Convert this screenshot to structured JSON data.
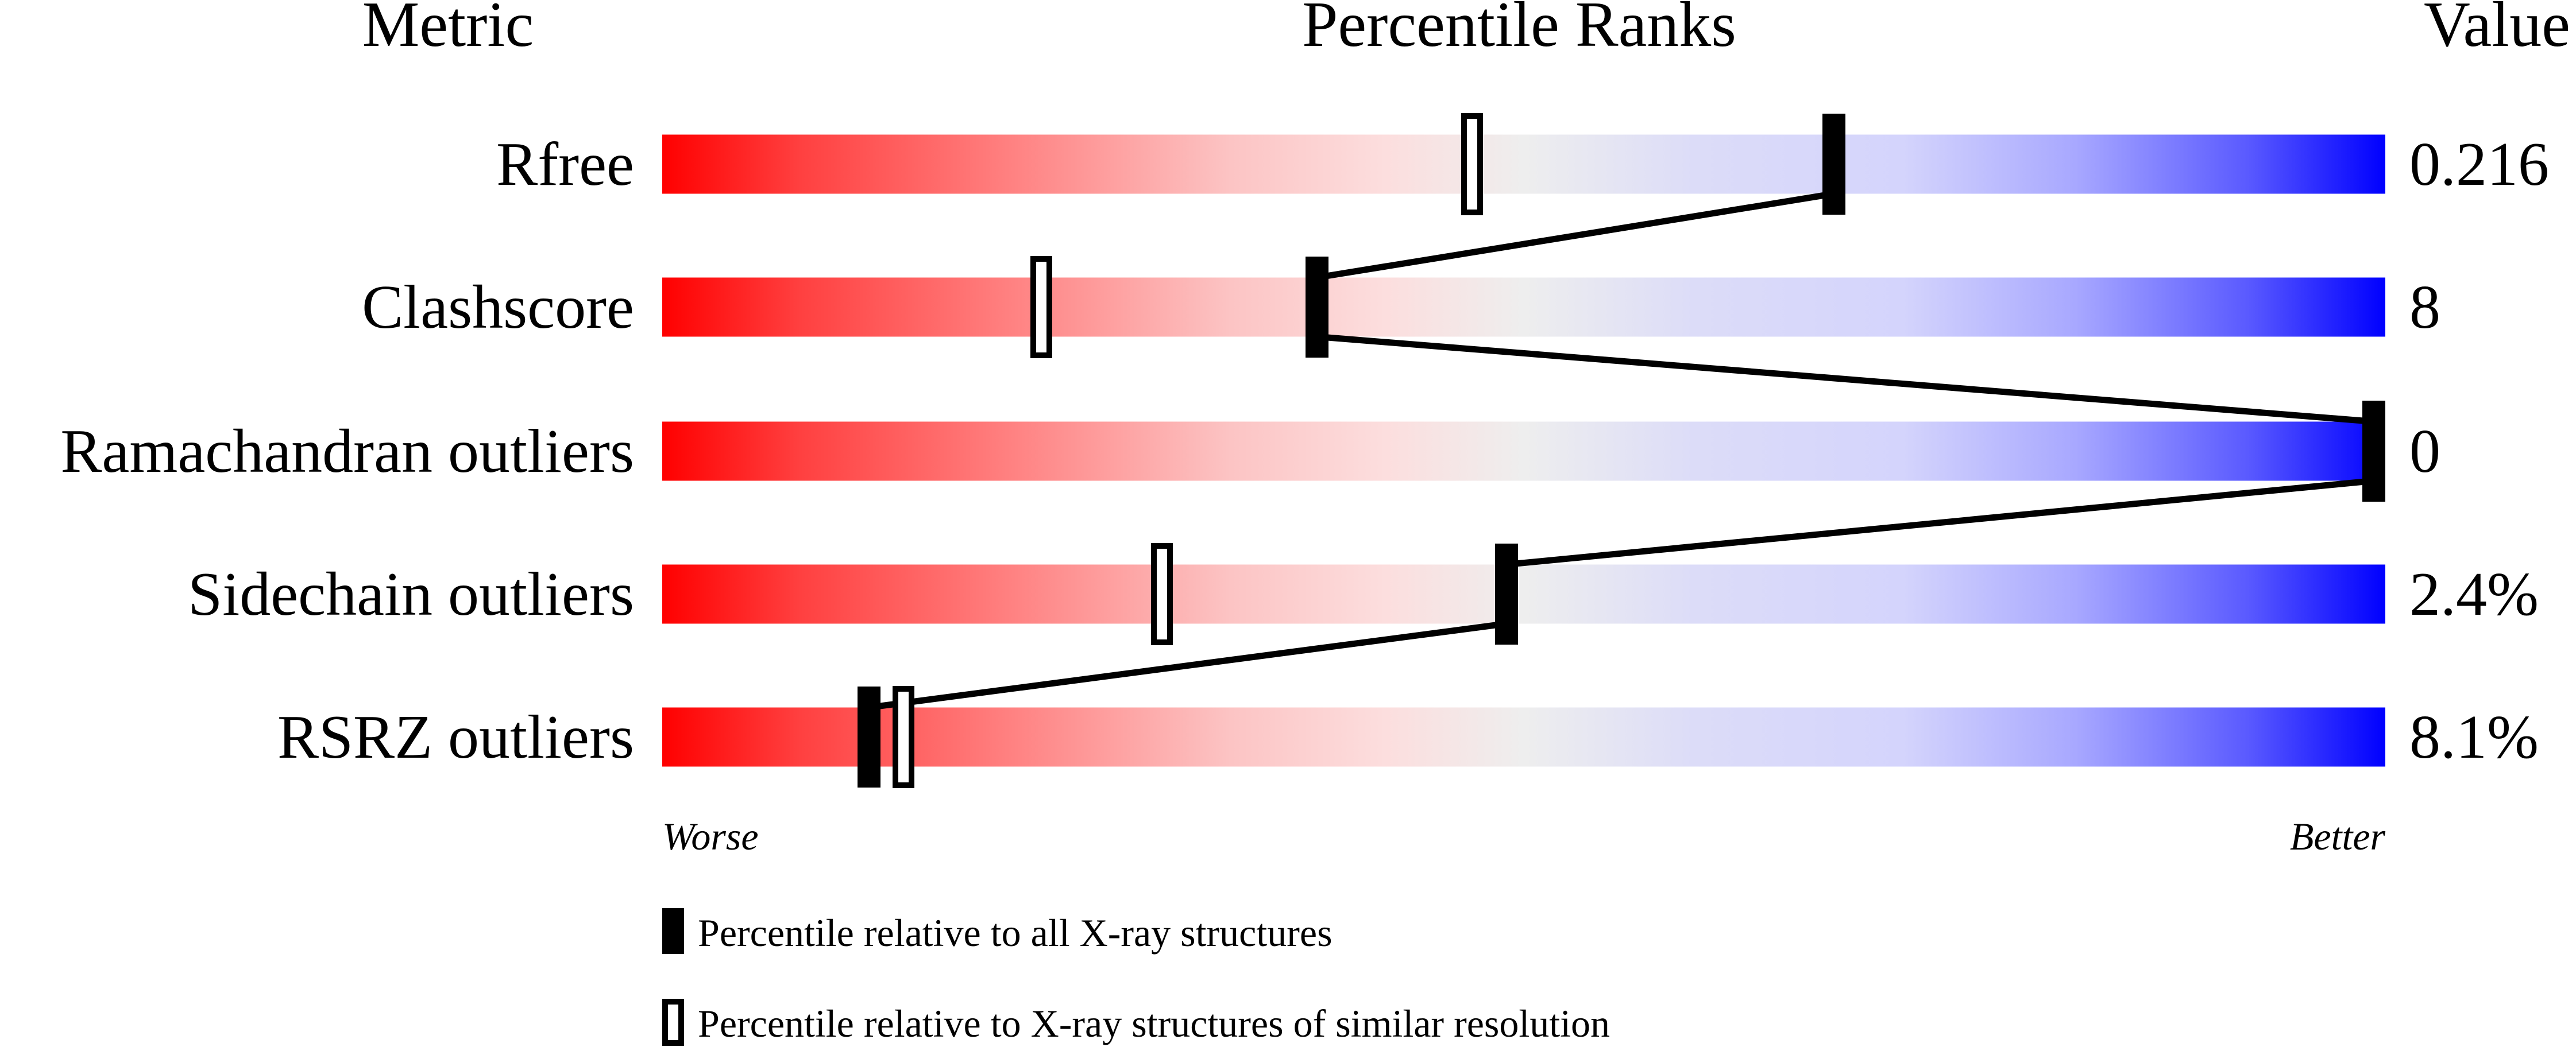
{
  "chart_data": {
    "type": "bar",
    "header": {
      "metric": "Metric",
      "ranks": "Percentile Ranks",
      "value": "Value"
    },
    "xlim": [
      0,
      100
    ],
    "metrics": [
      {
        "name": "Rfree",
        "value": "0.216",
        "percentile_all": 68,
        "percentile_similar": 47
      },
      {
        "name": "Clashscore",
        "value": "8",
        "percentile_all": 38,
        "percentile_similar": 22
      },
      {
        "name": "Ramachandran outliers",
        "value": "0",
        "percentile_all": 100,
        "percentile_similar": null
      },
      {
        "name": "Sidechain outliers",
        "value": "2.4%",
        "percentile_all": 49,
        "percentile_similar": 29
      },
      {
        "name": "RSRZ outliers",
        "value": "8.1%",
        "percentile_all": 12,
        "percentile_similar": 14
      }
    ],
    "axis_labels": {
      "worse": "Worse",
      "better": "Better"
    },
    "legend": {
      "filled": "Percentile relative to all X-ray structures",
      "open": "Percentile relative to X-ray structures of similar resolution"
    },
    "colors": {
      "worse": "#ff0000",
      "middle": "#efefef",
      "better": "#0000ff",
      "marker": "#000000"
    }
  }
}
